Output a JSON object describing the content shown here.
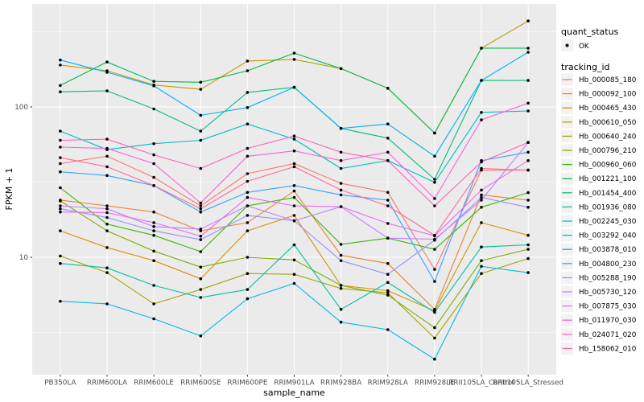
{
  "chart_data": {
    "type": "line",
    "title": "",
    "xlabel": "sample_name",
    "ylabel": "FPKM + 1",
    "yscale": "log10",
    "ylim": [
      1.7,
      470
    ],
    "grid": "on",
    "legend_position": "right",
    "y_ticks": [
      {
        "label": "100",
        "value": 100
      },
      {
        "label": "10",
        "value": 10
      }
    ],
    "y_minor_gridlines": [
      3.1623,
      31.623,
      316.23
    ],
    "categories": [
      "PB350LA",
      "RRIM600LA",
      "RRIM600LE",
      "RRIM600SE",
      "RRIM600PE",
      "RRIM901LA",
      "RRIM928BA",
      "RRIM928LA",
      "RRIM928LE",
      "RRII105LA_Control",
      "RRII105LA_Stressed"
    ],
    "quant_status": {
      "title": "quant_status",
      "ok_label": "OK"
    },
    "tracking_legend_title": "tracking_id",
    "colors": {
      "panel_bg": "#EBEBEB",
      "gridline": "#FFFFFF",
      "point": "#000000",
      "legend_key_bg": "#F2F2F2"
    },
    "series": [
      {
        "name": "Hb_000085_180",
        "color": "#F8766D",
        "values": [
          42,
          47,
          34,
          22,
          36,
          42,
          31,
          27,
          8.3,
          38,
          38
        ]
      },
      {
        "name": "Hb_000092_100",
        "color": "#EA8331",
        "values": [
          24,
          22,
          20,
          15,
          17,
          27.6,
          10.3,
          9.1,
          4.5,
          26,
          24
        ]
      },
      {
        "name": "Hb_000465_430",
        "color": "#D89000",
        "values": [
          15,
          11.6,
          9.5,
          7.2,
          15,
          19,
          6.5,
          6,
          4.4,
          17,
          14
        ]
      },
      {
        "name": "Hb_000610_050",
        "color": "#C09B00",
        "values": [
          190,
          174,
          140,
          131,
          202,
          207,
          180,
          133,
          67,
          246,
          373
        ]
      },
      {
        "name": "Hb_000640_240",
        "color": "#A3A500",
        "values": [
          10.2,
          7.9,
          4.9,
          6.1,
          7.8,
          7.7,
          6.2,
          5.8,
          2.9,
          7.8,
          9.8
        ]
      },
      {
        "name": "Hb_000796_210",
        "color": "#7CAE00",
        "values": [
          23.7,
          15,
          11,
          8.6,
          10,
          9.6,
          6.5,
          5.6,
          3.4,
          9.5,
          11.3
        ]
      },
      {
        "name": "Hb_000960_060",
        "color": "#39B600",
        "values": [
          29,
          16.6,
          14,
          10.9,
          22,
          25,
          12.2,
          13.4,
          11.3,
          21.5,
          26.9
        ]
      },
      {
        "name": "Hb_001221_100",
        "color": "#00BB4E",
        "values": [
          139,
          199,
          148,
          146,
          174,
          228,
          180,
          133,
          67,
          246,
          246
        ]
      },
      {
        "name": "Hb_001454_400",
        "color": "#00BF7D",
        "values": [
          126,
          128,
          97,
          69,
          125,
          135,
          72,
          62,
          33,
          150,
          150
        ]
      },
      {
        "name": "Hb_001936_080",
        "color": "#00C1A3",
        "values": [
          9.1,
          8.5,
          6.5,
          5.4,
          6.1,
          12.1,
          4.5,
          6.8,
          4.3,
          11.7,
          12.1
        ]
      },
      {
        "name": "Hb_002245_030",
        "color": "#00BFC4",
        "values": [
          69,
          52,
          57,
          60,
          77,
          61,
          39,
          44,
          31.5,
          92,
          94
        ]
      },
      {
        "name": "Hb_003292_040",
        "color": "#00BAE0",
        "values": [
          5.1,
          4.9,
          3.9,
          3,
          5.3,
          6.7,
          3.7,
          3.3,
          2.1,
          8.7,
          7.9
        ]
      },
      {
        "name": "Hb_003878_010",
        "color": "#00B0F6",
        "values": [
          205,
          170,
          138,
          88,
          99,
          135,
          72,
          77,
          47,
          150,
          231
        ]
      },
      {
        "name": "Hb_004800_230",
        "color": "#35A2FF",
        "values": [
          37,
          35,
          30,
          20,
          27,
          30,
          26,
          24,
          6.9,
          44,
          50
        ]
      },
      {
        "name": "Hb_005288_190",
        "color": "#9590FF",
        "values": [
          21,
          18.4,
          15,
          13.1,
          19,
          17.5,
          9.5,
          7.7,
          13,
          25,
          21.5
        ]
      },
      {
        "name": "Hb_005730_120",
        "color": "#C77CFF",
        "values": [
          22,
          21,
          16,
          15.4,
          22,
          17.5,
          21.7,
          13.4,
          13.2,
          24,
          58
        ]
      },
      {
        "name": "Hb_007875_030",
        "color": "#E76BF3",
        "values": [
          20,
          19.8,
          17,
          13.8,
          25,
          22,
          21.7,
          16.8,
          13.9,
          28,
          44
        ]
      },
      {
        "name": "Hb_011970_030",
        "color": "#FA62DB",
        "values": [
          54,
          53,
          42,
          23,
          47,
          51,
          44,
          50,
          24.6,
          82,
          106
        ]
      },
      {
        "name": "Hb_024071_020",
        "color": "#FF62BC",
        "values": [
          60,
          61,
          48,
          39,
          53,
          64,
          50,
          44,
          22,
          43,
          58
        ]
      },
      {
        "name": "Hb_158062_010",
        "color": "#FF6A98",
        "values": [
          46,
          40,
          30,
          21,
          32,
          40,
          28,
          22,
          14,
          39,
          38
        ]
      }
    ]
  }
}
